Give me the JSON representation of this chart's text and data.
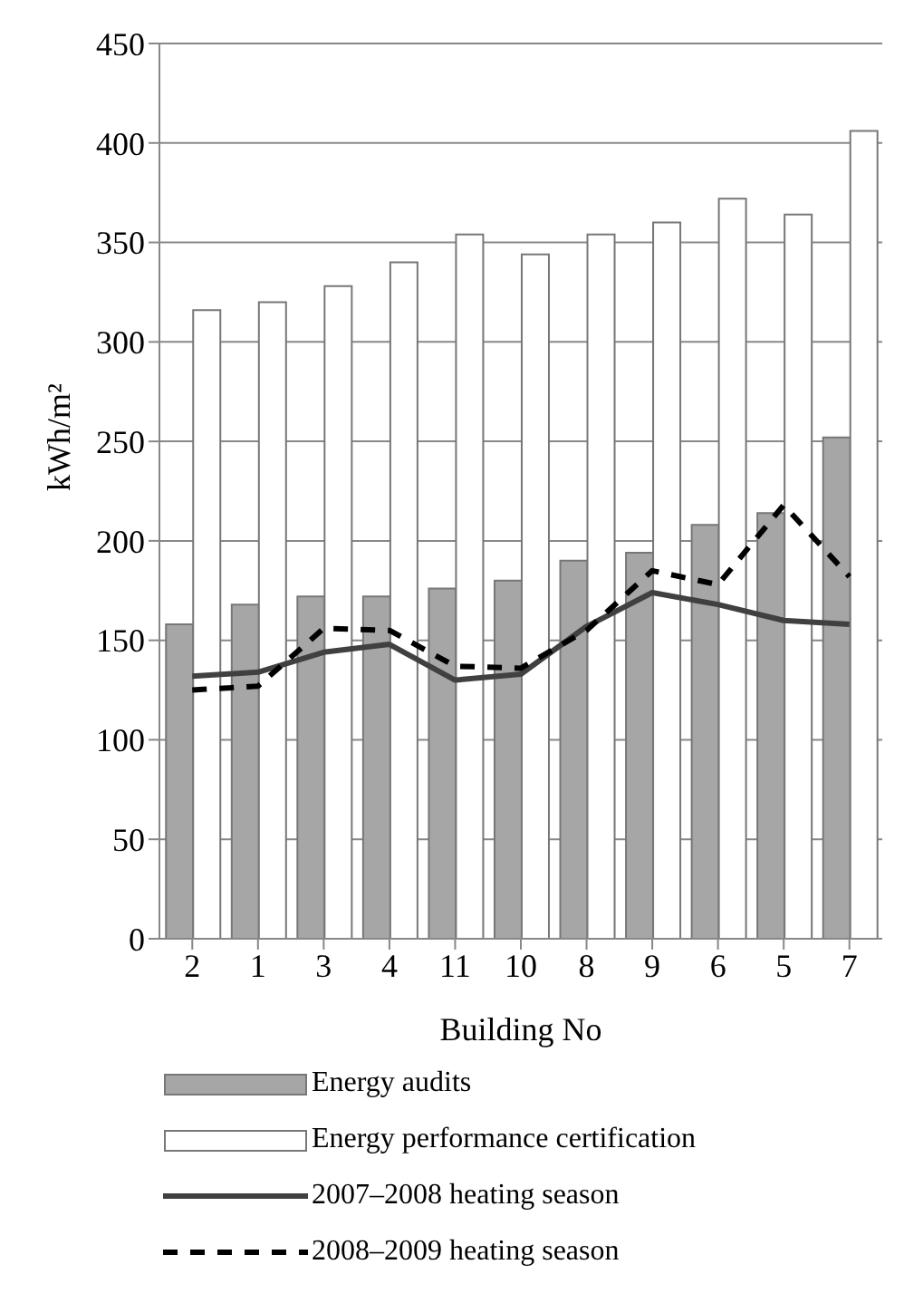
{
  "chart_data": {
    "type": "bar",
    "xlabel": "Building No",
    "ylabel": "kWh/m²",
    "categories": [
      "2",
      "1",
      "3",
      "4",
      "11",
      "10",
      "8",
      "9",
      "6",
      "5",
      "7"
    ],
    "series": [
      {
        "name": "Energy audits",
        "color": "#a6a6a6",
        "values": [
          158,
          168,
          172,
          172,
          176,
          180,
          190,
          194,
          208,
          214,
          252
        ]
      },
      {
        "name": "Energy performance certification",
        "color": "#ffffff",
        "values": [
          316,
          320,
          328,
          340,
          354,
          344,
          354,
          360,
          372,
          364,
          406
        ]
      },
      {
        "name": "2007–2008 heating season",
        "type": "line",
        "color": "#404040",
        "line_style": "solid",
        "values": [
          132,
          134,
          144,
          148,
          130,
          133,
          157,
          174,
          168,
          160,
          158
        ]
      },
      {
        "name": "2008–2009 heating season",
        "type": "line",
        "color": "#000000",
        "line_style": "dashed",
        "values": [
          125,
          127,
          156,
          155,
          137,
          136,
          155,
          185,
          178,
          218,
          182
        ]
      }
    ],
    "ylim": [
      0,
      450
    ],
    "yticks": [
      0,
      50,
      100,
      150,
      200,
      250,
      300,
      350,
      400,
      450
    ],
    "grid": "y",
    "legend": "bottom",
    "marker": "none"
  }
}
